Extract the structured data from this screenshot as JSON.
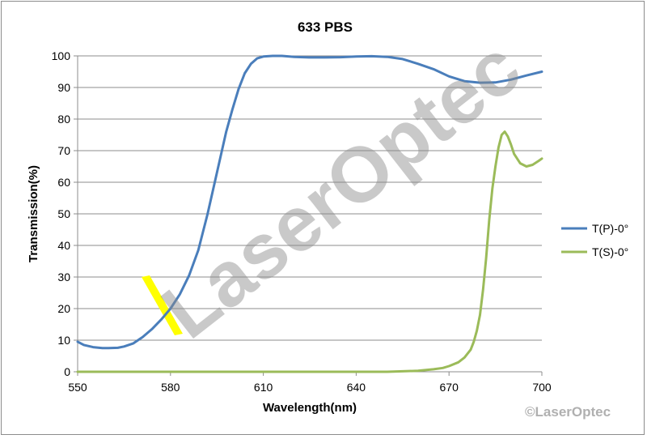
{
  "chart_data": {
    "type": "line",
    "title": "633 PBS",
    "xlabel": "Wavelength(nm)",
    "ylabel": "Transmission(%)",
    "xlim": [
      550,
      700
    ],
    "ylim": [
      0,
      100
    ],
    "xticks": [
      550,
      580,
      610,
      640,
      670,
      700
    ],
    "yticks": [
      0,
      10,
      20,
      30,
      40,
      50,
      60,
      70,
      80,
      90,
      100
    ],
    "grid": "horizontal",
    "legend_position": "right",
    "series": [
      {
        "name": "T(P)-0°",
        "color": "#4a7ebb",
        "x": [
          550,
          552,
          555,
          558,
          560,
          563,
          565,
          568,
          571,
          574,
          577,
          580,
          583,
          586,
          589,
          592,
          595,
          598,
          600,
          602,
          604,
          606,
          608,
          610,
          613,
          616,
          620,
          625,
          630,
          635,
          640,
          645,
          650,
          655,
          660,
          665,
          670,
          675,
          680,
          685,
          690,
          695,
          700
        ],
        "y": [
          9.5,
          8.5,
          7.8,
          7.5,
          7.5,
          7.6,
          8.0,
          9.0,
          11.0,
          13.5,
          16.5,
          20.0,
          24.5,
          30.5,
          38.5,
          50.0,
          63.0,
          76.0,
          83.0,
          89.5,
          94.5,
          97.5,
          99.2,
          99.8,
          100,
          100,
          99.7,
          99.5,
          99.5,
          99.6,
          99.8,
          99.9,
          99.7,
          99.0,
          97.5,
          95.8,
          93.5,
          92.0,
          91.5,
          91.6,
          92.5,
          93.8,
          95.0
        ]
      },
      {
        "name": "T(S)-0°",
        "color": "#9bbb59",
        "x": [
          550,
          600,
          650,
          660,
          665,
          668,
          670,
          673,
          675,
          677,
          678,
          679,
          680,
          681,
          682,
          683,
          684,
          685,
          686,
          687,
          688,
          689,
          690,
          691,
          693,
          695,
          697,
          699,
          700
        ],
        "y": [
          0,
          0,
          0,
          0.3,
          0.8,
          1.2,
          1.8,
          3.0,
          4.5,
          7.0,
          9.5,
          13.0,
          18.0,
          26.0,
          36.0,
          48.0,
          58.0,
          65.0,
          71.0,
          75.0,
          76.0,
          74.5,
          72.0,
          69.0,
          66.0,
          65.0,
          65.5,
          66.8,
          67.5
        ]
      }
    ],
    "annotations": [
      "LaserOptec"
    ]
  },
  "watermark_text": "LaserOptec",
  "copyright": "©LaserOptec",
  "highlight_color": "#ffff00"
}
